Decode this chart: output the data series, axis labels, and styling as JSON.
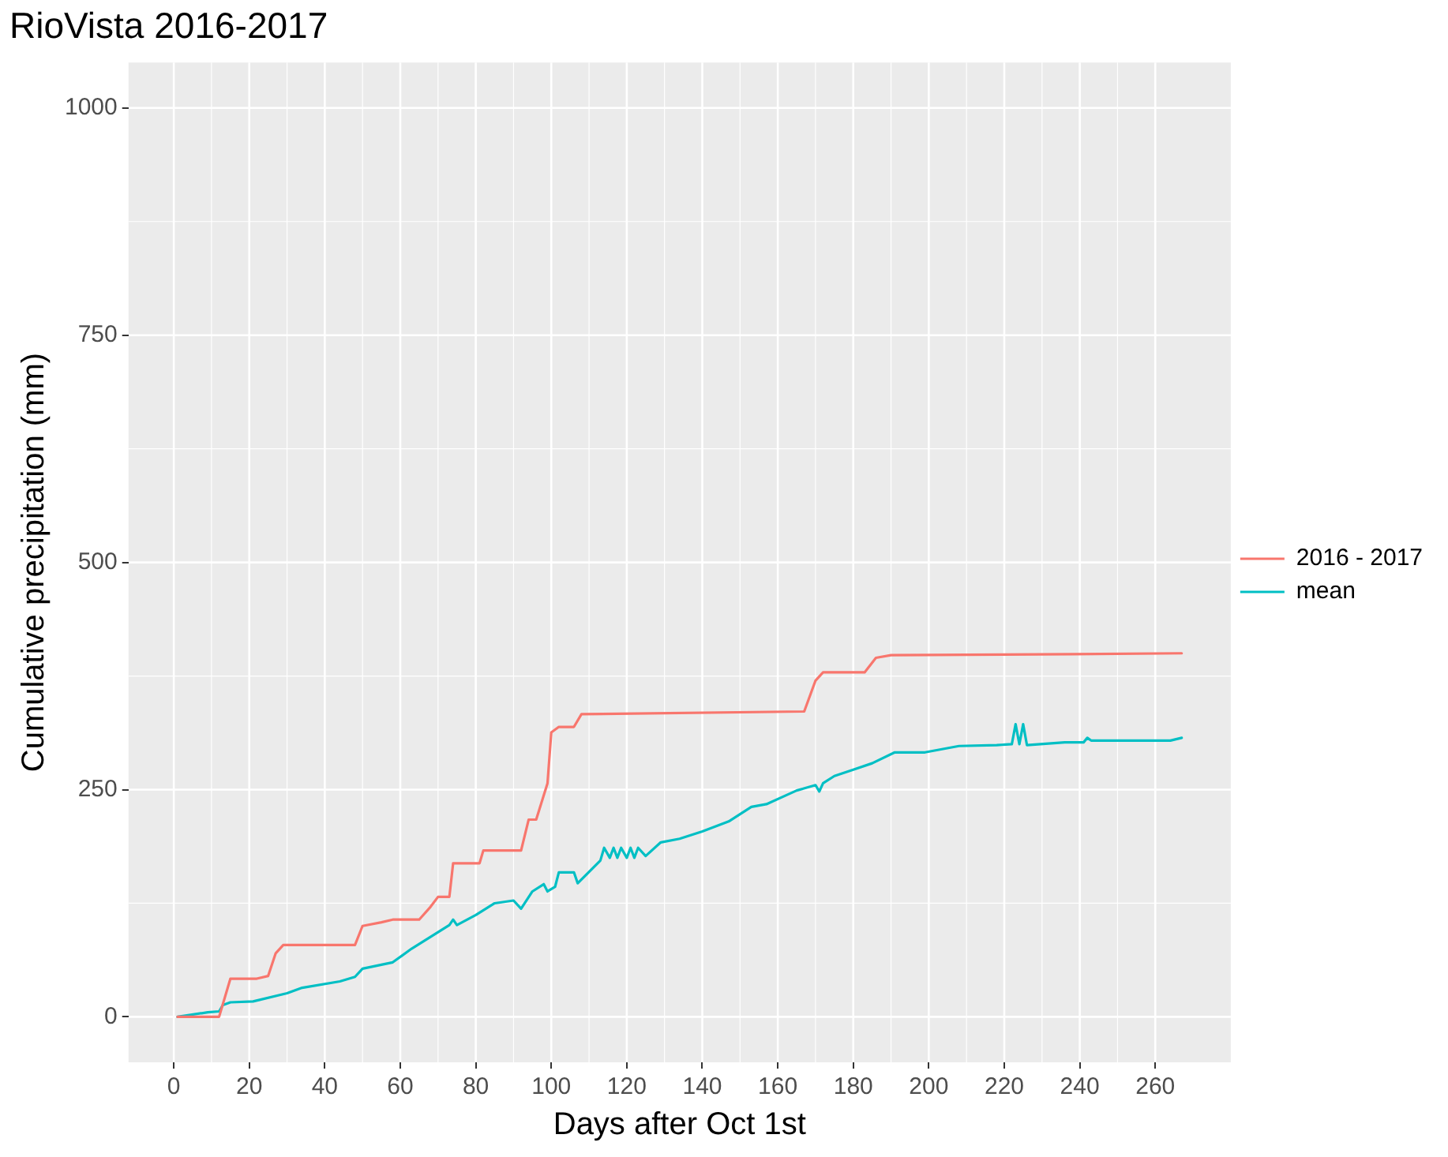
{
  "chart_data": {
    "type": "line",
    "title": "RioVista 2016-2017",
    "xlabel": "Days after Oct 1st",
    "ylabel": "Cumulative precipitation (mm)",
    "xlim": [
      -12,
      280
    ],
    "xticks": [
      0,
      20,
      40,
      60,
      80,
      100,
      120,
      140,
      160,
      180,
      200,
      220,
      240,
      260
    ],
    "ylim": [
      -50,
      1050
    ],
    "yticks": [
      0,
      250,
      500,
      750,
      1000
    ],
    "grid": true,
    "legend": "right",
    "marker": "none",
    "line_style": "solid",
    "series": [
      {
        "name": "2016 - 2017",
        "color": "#f8766d",
        "x": [
          1,
          12,
          15,
          22,
          25,
          27,
          29,
          48,
          50,
          55,
          58,
          65,
          68,
          70,
          73,
          74,
          81,
          82,
          92,
          94,
          96,
          99,
          100,
          102,
          106,
          108,
          167,
          170,
          172,
          183,
          186,
          190,
          238,
          267
        ],
        "values": [
          0,
          0,
          42,
          42,
          45,
          70,
          79,
          79,
          100,
          104,
          107,
          107,
          121,
          132,
          132,
          169,
          169,
          183,
          183,
          217,
          217,
          257,
          313,
          319,
          319,
          333,
          336,
          370,
          379,
          379,
          395,
          398,
          399,
          400
        ]
      },
      {
        "name": "mean",
        "color": "#00bfc4",
        "x": [
          1,
          9,
          12,
          13,
          15,
          21,
          30,
          34,
          44,
          48,
          50,
          58,
          63,
          68,
          73,
          74,
          75,
          80,
          85,
          90,
          92,
          95,
          98,
          99,
          101,
          102,
          106,
          107,
          113,
          114,
          115.5,
          116.5,
          117.5,
          118.5,
          120,
          121,
          122,
          123,
          125,
          129,
          134,
          140,
          147,
          153,
          157,
          165,
          170,
          171,
          172,
          175,
          180,
          185,
          191,
          199,
          208,
          218,
          222,
          223,
          224,
          225,
          226,
          236,
          241,
          242,
          243,
          264,
          267
        ],
        "values": [
          0,
          5,
          6,
          13,
          16,
          17,
          26,
          32,
          39,
          44,
          53,
          60,
          75,
          88,
          101,
          107,
          101,
          112,
          125,
          128,
          119,
          138,
          146,
          138,
          143,
          159,
          159,
          147,
          172,
          186,
          175,
          186,
          175,
          186,
          175,
          186,
          175,
          186,
          177,
          192,
          196,
          204,
          215,
          231,
          234,
          249,
          255,
          248,
          257,
          265,
          272,
          279,
          291,
          291,
          298,
          299,
          300,
          322,
          300,
          322,
          299,
          302,
          302,
          307,
          304,
          304,
          307
        ]
      }
    ]
  }
}
